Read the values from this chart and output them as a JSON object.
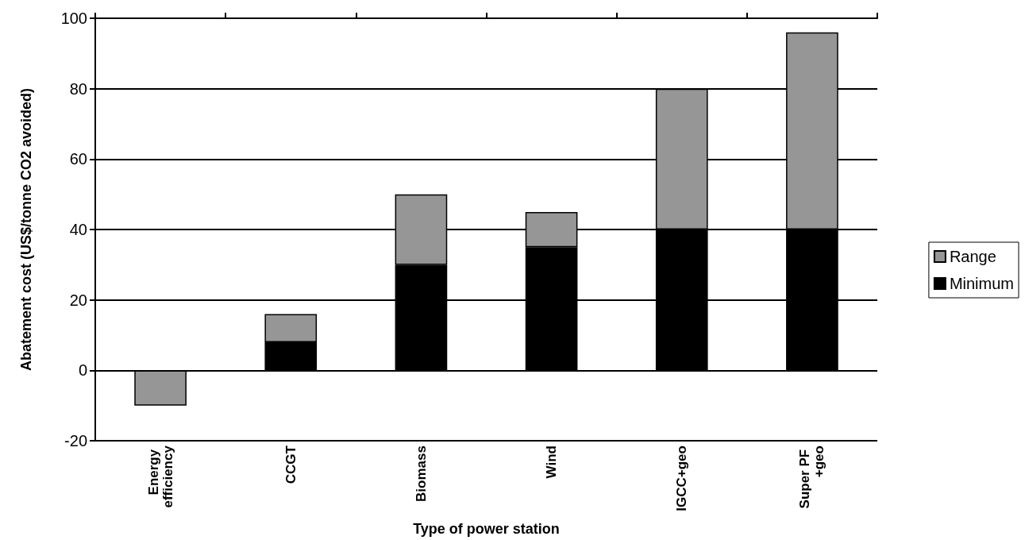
{
  "chart_data": {
    "type": "bar",
    "xlabel": "Type of power station",
    "ylabel": "Abatement cost (US$/tonne CO2 avoided)",
    "categories": [
      "Energy efficiency",
      "CCGT",
      "Biomass",
      "Wind",
      "IGCC+geo",
      "Super PF +geo"
    ],
    "stacked": true,
    "series": [
      {
        "name": "Minimum",
        "color": "#000000",
        "values": [
          null,
          8,
          30,
          35,
          40,
          40
        ]
      },
      {
        "name": "Range",
        "color": "#969696",
        "values": [
          -10,
          8,
          20,
          10,
          40,
          56
        ]
      }
    ],
    "ylim": [
      -20,
      100
    ],
    "yticks": [
      -20,
      0,
      20,
      40,
      60,
      80,
      100
    ],
    "grid": "y",
    "legend": "right"
  }
}
